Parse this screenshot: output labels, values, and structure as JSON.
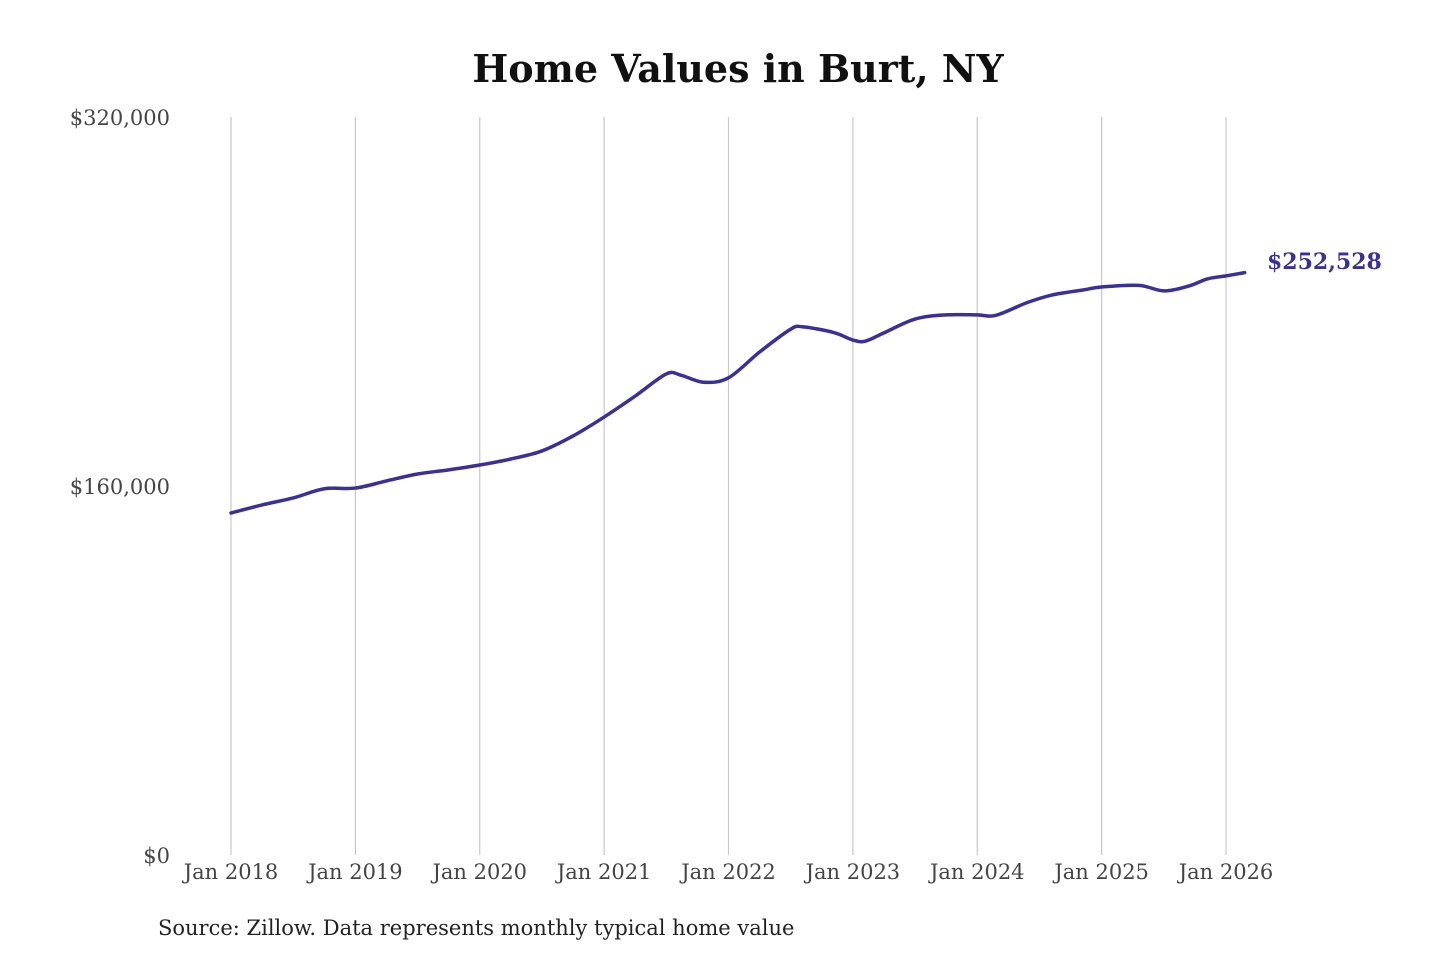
{
  "chart_data": {
    "type": "line",
    "title": "Home Values in Burt, NY",
    "xlabel": "",
    "ylabel": "",
    "ylim": [
      0,
      320000
    ],
    "y_ticks": [
      0,
      160000,
      320000
    ],
    "y_tick_labels": [
      "$0",
      "$160,000",
      "$320,000"
    ],
    "x_ticks": [
      2018,
      2019,
      2020,
      2021,
      2022,
      2023,
      2024,
      2025,
      2026
    ],
    "x_tick_labels": [
      "Jan 2018",
      "Jan 2019",
      "Jan 2020",
      "Jan 2021",
      "Jan 2022",
      "Jan 2023",
      "Jan 2024",
      "Jan 2025",
      "Jan 2026"
    ],
    "grid": "vertical",
    "color": "#3a3096",
    "series": [
      {
        "name": "Typical home value",
        "x": [
          2018.0,
          2018.25,
          2018.5,
          2018.75,
          2019.0,
          2019.25,
          2019.5,
          2019.75,
          2020.0,
          2020.25,
          2020.5,
          2020.75,
          2021.0,
          2021.25,
          2021.5,
          2021.62,
          2021.8,
          2022.0,
          2022.25,
          2022.5,
          2022.6,
          2022.85,
          2023.0,
          2023.1,
          2023.25,
          2023.5,
          2023.75,
          2024.0,
          2024.15,
          2024.4,
          2024.6,
          2024.85,
          2025.0,
          2025.3,
          2025.5,
          2025.7,
          2025.85,
          2026.0,
          2026.15
        ],
        "values": [
          148300,
          151800,
          154800,
          158800,
          159100,
          162200,
          165200,
          167000,
          169100,
          171700,
          175200,
          181700,
          189900,
          199000,
          208600,
          208000,
          205000,
          206900,
          218100,
          228000,
          229000,
          226500,
          223300,
          222800,
          226400,
          232400,
          234200,
          234200,
          234000,
          239500,
          242800,
          245000,
          246300,
          247000,
          244600,
          246700,
          249800,
          251100,
          252528
        ]
      }
    ],
    "annotations": [
      {
        "text": "$252,528"
      }
    ],
    "source": "Source: Zillow. Data represents monthly typical home value"
  }
}
